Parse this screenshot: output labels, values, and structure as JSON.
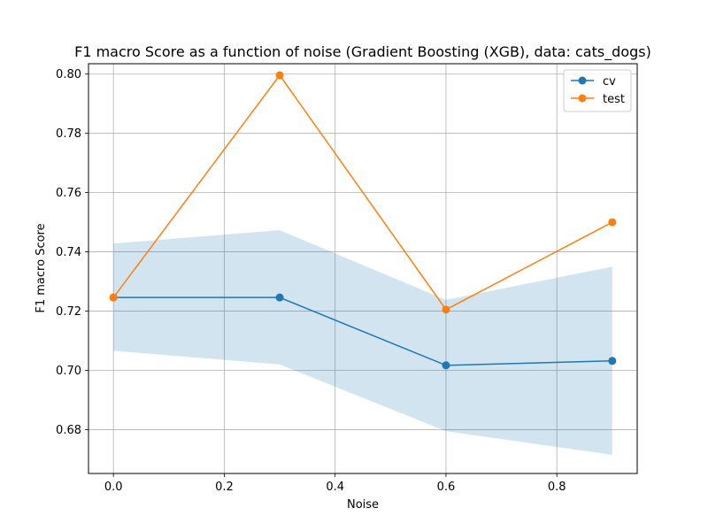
{
  "chart_data": {
    "type": "line",
    "title": "F1 macro Score as a function of noise (Gradient Boosting (XGB), data: cats_dogs)",
    "xlabel": "Noise",
    "ylabel": "F1 macro Score",
    "xlim": [
      -0.045,
      0.945
    ],
    "ylim": [
      0.6652,
      0.8035
    ],
    "xticks": [
      0.0,
      0.2,
      0.4,
      0.6,
      0.8
    ],
    "xtick_labels": [
      "0.0",
      "0.2",
      "0.4",
      "0.6",
      "0.8"
    ],
    "yticks": [
      0.68,
      0.7,
      0.72,
      0.74,
      0.76,
      0.78,
      0.8
    ],
    "ytick_labels": [
      "0.68",
      "0.70",
      "0.72",
      "0.74",
      "0.76",
      "0.78",
      "0.80"
    ],
    "grid": true,
    "legend_position": "top-right",
    "series": [
      {
        "name": "cv",
        "color": "#1f77b4",
        "x": [
          0.0,
          0.3,
          0.6,
          0.9
        ],
        "y": [
          0.7246,
          0.7246,
          0.7017,
          0.7032
        ],
        "band_lower": [
          0.7066,
          0.702,
          0.6795,
          0.6715
        ],
        "band_upper": [
          0.7428,
          0.7473,
          0.7238,
          0.735
        ]
      },
      {
        "name": "test",
        "color": "#ff7f0e",
        "x": [
          0.0,
          0.3,
          0.6,
          0.9
        ],
        "y": [
          0.7246,
          0.7996,
          0.7205,
          0.75
        ]
      }
    ]
  }
}
